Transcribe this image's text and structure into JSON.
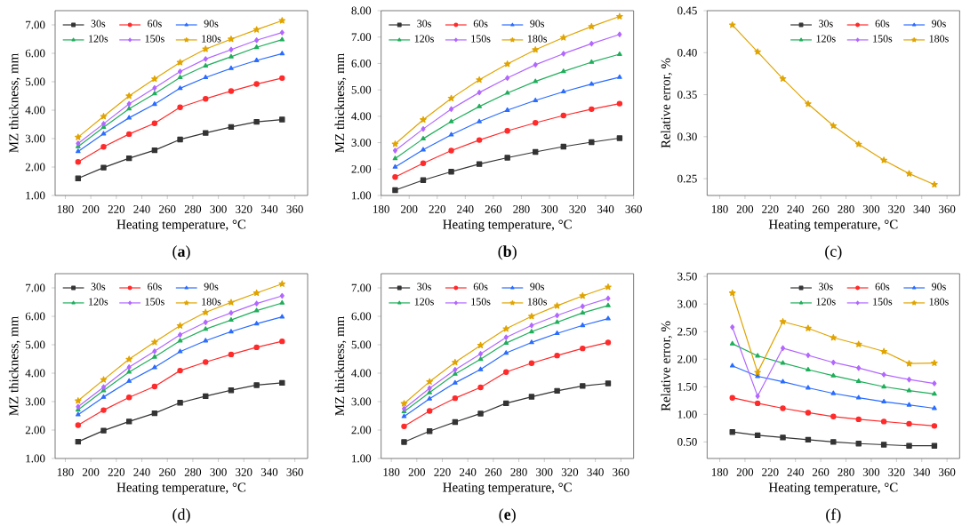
{
  "chart_data": [
    {
      "type": "line",
      "xlabel": "Heating temperature, °C",
      "ylabel": "MZ thickness, mm",
      "annotations": [
        "(**a**)"
      ],
      "legend": "top left",
      "x": [
        190,
        210,
        230,
        250,
        270,
        290,
        310,
        330,
        350
      ],
      "xlim": [
        172,
        370
      ],
      "xticks": [
        180,
        200,
        220,
        240,
        260,
        280,
        300,
        320,
        340,
        360
      ],
      "ylim": [
        1,
        7.5
      ],
      "yticks": [
        {
          "value": 1,
          "label": "1.00"
        },
        {
          "value": 2,
          "label": "2.00"
        },
        {
          "value": 3,
          "label": "3.00"
        },
        {
          "value": 4,
          "label": "4.00"
        },
        {
          "value": 5,
          "label": "5.00"
        },
        {
          "value": 6,
          "label": "6.00"
        },
        {
          "value": 7,
          "label": "7.00"
        }
      ],
      "series": [
        {
          "name": "30s",
          "color": "#333333",
          "marker": "square",
          "values": [
            1.6,
            1.98,
            2.31,
            2.59,
            2.97,
            3.2,
            3.41,
            3.59,
            3.67
          ]
        },
        {
          "name": "60s",
          "color": "#ff2a2a",
          "marker": "circle",
          "values": [
            2.18,
            2.71,
            3.16,
            3.54,
            4.1,
            4.4,
            4.67,
            4.92,
            5.13
          ]
        },
        {
          "name": "90s",
          "color": "#2a6cff",
          "marker": "triangle",
          "values": [
            2.55,
            3.17,
            3.73,
            4.21,
            4.77,
            5.15,
            5.47,
            5.75,
            5.99
          ]
        },
        {
          "name": "120s",
          "color": "#1fae5a",
          "marker": "triangle",
          "values": [
            2.72,
            3.4,
            4.05,
            4.58,
            5.15,
            5.56,
            5.88,
            6.21,
            6.48
          ]
        },
        {
          "name": "150s",
          "color": "#b266ff",
          "marker": "diamond",
          "values": [
            2.83,
            3.52,
            4.22,
            4.78,
            5.36,
            5.8,
            6.13,
            6.46,
            6.73
          ]
        },
        {
          "name": "180s",
          "color": "#e0a400",
          "marker": "star",
          "values": [
            3.05,
            3.78,
            4.5,
            5.1,
            5.68,
            6.15,
            6.5,
            6.83,
            7.15
          ]
        }
      ]
    },
    {
      "type": "line",
      "xlabel": "Heating temperature, °C",
      "ylabel": "MZ thickness, mm",
      "annotations": [
        "(**b**)"
      ],
      "legend": "top left",
      "x": [
        190,
        210,
        230,
        250,
        270,
        290,
        310,
        330,
        350
      ],
      "xlim": [
        180,
        360
      ],
      "xticks": [
        180,
        200,
        220,
        240,
        260,
        280,
        300,
        320,
        340,
        360
      ],
      "ylim": [
        1,
        8
      ],
      "yticks": [
        {
          "value": 1,
          "label": "1.00"
        },
        {
          "value": 2,
          "label": "2.00"
        },
        {
          "value": 3,
          "label": "3.00"
        },
        {
          "value": 4,
          "label": "4.00"
        },
        {
          "value": 5,
          "label": "5.00"
        },
        {
          "value": 6,
          "label": "6.00"
        },
        {
          "value": 7,
          "label": "7.00"
        },
        {
          "value": 8,
          "label": "8.00"
        }
      ],
      "series": [
        {
          "name": "30s",
          "color": "#333333",
          "marker": "square",
          "values": [
            1.2,
            1.58,
            1.9,
            2.19,
            2.43,
            2.65,
            2.85,
            3.02,
            3.17
          ]
        },
        {
          "name": "60s",
          "color": "#ff2a2a",
          "marker": "circle",
          "values": [
            1.7,
            2.22,
            2.7,
            3.1,
            3.45,
            3.75,
            4.03,
            4.27,
            4.48
          ]
        },
        {
          "name": "90s",
          "color": "#2a6cff",
          "marker": "triangle",
          "values": [
            2.08,
            2.73,
            3.3,
            3.8,
            4.23,
            4.6,
            4.93,
            5.22,
            5.48
          ]
        },
        {
          "name": "120s",
          "color": "#1fae5a",
          "marker": "triangle",
          "values": [
            2.4,
            3.15,
            3.8,
            4.37,
            4.88,
            5.32,
            5.7,
            6.05,
            6.35
          ]
        },
        {
          "name": "150s",
          "color": "#b266ff",
          "marker": "diamond",
          "values": [
            2.7,
            3.52,
            4.27,
            4.9,
            5.45,
            5.95,
            6.37,
            6.75,
            7.1
          ]
        },
        {
          "name": "180s",
          "color": "#e0a400",
          "marker": "star",
          "values": [
            2.95,
            3.87,
            4.68,
            5.38,
            5.98,
            6.52,
            6.98,
            7.4,
            7.78
          ]
        }
      ]
    },
    {
      "type": "line",
      "xlabel": "Heating temperature, °C",
      "ylabel": "Relative error, %",
      "annotations": [
        "(c)"
      ],
      "legend": "top right",
      "x": [
        190,
        210,
        230,
        250,
        270,
        290,
        310,
        330,
        350
      ],
      "xlim": [
        170,
        370
      ],
      "xticks": [
        180,
        200,
        220,
        240,
        260,
        280,
        300,
        320,
        340,
        360
      ],
      "ylim": [
        0.23,
        0.45
      ],
      "yticks": [
        {
          "value": 0.25,
          "label": "0.25"
        },
        {
          "value": 0.3,
          "label": "0.30"
        },
        {
          "value": 0.35,
          "label": "0.35"
        },
        {
          "value": 0.4,
          "label": "0.40"
        },
        {
          "value": 0.45,
          "label": "0.45"
        }
      ],
      "series": [
        {
          "name": "30s",
          "color": "#333333",
          "marker": "square",
          "values": [
            null,
            null,
            null,
            null,
            null,
            null,
            null,
            null,
            null
          ]
        },
        {
          "name": "60s",
          "color": "#ff2a2a",
          "marker": "circle",
          "values": [
            null,
            null,
            null,
            null,
            null,
            null,
            null,
            null,
            null
          ]
        },
        {
          "name": "90s",
          "color": "#2a6cff",
          "marker": "triangle",
          "values": [
            null,
            null,
            null,
            null,
            null,
            null,
            null,
            null,
            null
          ]
        },
        {
          "name": "120s",
          "color": "#1fae5a",
          "marker": "triangle",
          "values": [
            null,
            null,
            null,
            null,
            null,
            null,
            null,
            null,
            null
          ]
        },
        {
          "name": "150s",
          "color": "#b266ff",
          "marker": "diamond",
          "values": [
            null,
            null,
            null,
            null,
            null,
            null,
            null,
            null,
            null
          ]
        },
        {
          "name": "180s",
          "color": "#e0a400",
          "marker": "star",
          "values": [
            0.433,
            0.401,
            0.369,
            0.339,
            0.313,
            0.291,
            0.272,
            0.256,
            0.243
          ]
        }
      ]
    },
    {
      "type": "line",
      "xlabel": "Heating temperature, °C",
      "ylabel": "MZ thickness, mm",
      "annotations": [
        "(d)"
      ],
      "legend": "top left",
      "x": [
        190,
        210,
        230,
        250,
        270,
        290,
        310,
        330,
        350
      ],
      "xlim": [
        172,
        370
      ],
      "xticks": [
        180,
        200,
        220,
        240,
        260,
        280,
        300,
        320,
        340,
        360
      ],
      "ylim": [
        1,
        7.5
      ],
      "yticks": [
        {
          "value": 1,
          "label": "1.00"
        },
        {
          "value": 2,
          "label": "2.00"
        },
        {
          "value": 3,
          "label": "3.00"
        },
        {
          "value": 4,
          "label": "4.00"
        },
        {
          "value": 5,
          "label": "5.00"
        },
        {
          "value": 6,
          "label": "6.00"
        },
        {
          "value": 7,
          "label": "7.00"
        }
      ],
      "series": [
        {
          "name": "30s",
          "color": "#333333",
          "marker": "square",
          "values": [
            1.59,
            1.98,
            2.3,
            2.59,
            2.96,
            3.19,
            3.4,
            3.58,
            3.66
          ]
        },
        {
          "name": "60s",
          "color": "#ff2a2a",
          "marker": "circle",
          "values": [
            2.17,
            2.7,
            3.15,
            3.53,
            4.09,
            4.39,
            4.66,
            4.91,
            5.12
          ]
        },
        {
          "name": "90s",
          "color": "#2a6cff",
          "marker": "triangle",
          "values": [
            2.54,
            3.16,
            3.72,
            4.2,
            4.76,
            5.14,
            5.46,
            5.74,
            5.98
          ]
        },
        {
          "name": "120s",
          "color": "#1fae5a",
          "marker": "triangle",
          "values": [
            2.71,
            3.39,
            4.04,
            4.57,
            5.14,
            5.55,
            5.87,
            6.2,
            6.47
          ]
        },
        {
          "name": "150s",
          "color": "#b266ff",
          "marker": "diamond",
          "values": [
            2.82,
            3.51,
            4.21,
            4.77,
            5.35,
            5.79,
            6.12,
            6.45,
            6.72
          ]
        },
        {
          "name": "180s",
          "color": "#e0a400",
          "marker": "star",
          "values": [
            3.03,
            3.77,
            4.49,
            5.09,
            5.67,
            6.14,
            6.49,
            6.82,
            7.14
          ]
        }
      ]
    },
    {
      "type": "line",
      "xlabel": "Heating temperature, °C",
      "ylabel": "MZ thickness, mm",
      "annotations": [
        "(**e**)"
      ],
      "legend": "top left",
      "x": [
        190,
        210,
        230,
        250,
        270,
        290,
        310,
        330,
        350
      ],
      "xlim": [
        172,
        370
      ],
      "xticks": [
        180,
        200,
        220,
        240,
        260,
        280,
        300,
        320,
        340,
        360
      ],
      "ylim": [
        1,
        7.5
      ],
      "yticks": [
        {
          "value": 1,
          "label": "1.00"
        },
        {
          "value": 2,
          "label": "2.00"
        },
        {
          "value": 3,
          "label": "3.00"
        },
        {
          "value": 4,
          "label": "4.00"
        },
        {
          "value": 5,
          "label": "5.00"
        },
        {
          "value": 6,
          "label": "6.00"
        },
        {
          "value": 7,
          "label": "7.00"
        }
      ],
      "series": [
        {
          "name": "30s",
          "color": "#333333",
          "marker": "square",
          "values": [
            1.58,
            1.96,
            2.28,
            2.58,
            2.94,
            3.17,
            3.38,
            3.55,
            3.64
          ]
        },
        {
          "name": "60s",
          "color": "#ff2a2a",
          "marker": "circle",
          "values": [
            2.13,
            2.67,
            3.12,
            3.5,
            4.04,
            4.35,
            4.62,
            4.87,
            5.08
          ]
        },
        {
          "name": "90s",
          "color": "#2a6cff",
          "marker": "triangle",
          "values": [
            2.48,
            3.1,
            3.66,
            4.13,
            4.71,
            5.08,
            5.4,
            5.68,
            5.92
          ]
        },
        {
          "name": "120s",
          "color": "#1fae5a",
          "marker": "triangle",
          "values": [
            2.65,
            3.32,
            3.97,
            4.49,
            5.06,
            5.46,
            5.79,
            6.12,
            6.38
          ]
        },
        {
          "name": "150s",
          "color": "#b266ff",
          "marker": "diamond",
          "values": [
            2.75,
            3.47,
            4.12,
            4.68,
            5.26,
            5.68,
            6.03,
            6.35,
            6.63
          ]
        },
        {
          "name": "180s",
          "color": "#e0a400",
          "marker": "star",
          "values": [
            2.93,
            3.7,
            4.38,
            4.98,
            5.56,
            6.0,
            6.37,
            6.72,
            7.03
          ]
        }
      ]
    },
    {
      "type": "line",
      "xlabel": "Heating temperature, °C",
      "ylabel": "Relative error, %",
      "annotations": [
        "(f)"
      ],
      "legend": "top right",
      "x": [
        190,
        210,
        230,
        250,
        270,
        290,
        310,
        330,
        350
      ],
      "xlim": [
        170,
        370
      ],
      "xticks": [
        180,
        200,
        220,
        240,
        260,
        280,
        300,
        320,
        340,
        360
      ],
      "ylim": [
        0.2,
        3.55
      ],
      "yticks": [
        {
          "value": 0.5,
          "label": "0.50"
        },
        {
          "value": 1,
          "label": "1.00"
        },
        {
          "value": 1.5,
          "label": "1.50"
        },
        {
          "value": 2,
          "label": "2.00"
        },
        {
          "value": 2.5,
          "label": "2.50"
        },
        {
          "value": 3,
          "label": "3.00"
        },
        {
          "value": 3.5,
          "label": "3.50"
        }
      ],
      "series": [
        {
          "name": "30s",
          "color": "#333333",
          "marker": "square",
          "values": [
            0.68,
            0.62,
            0.58,
            0.54,
            0.5,
            0.47,
            0.45,
            0.43,
            0.43
          ]
        },
        {
          "name": "60s",
          "color": "#ff2a2a",
          "marker": "circle",
          "values": [
            1.3,
            1.2,
            1.11,
            1.03,
            0.96,
            0.91,
            0.87,
            0.83,
            0.79
          ]
        },
        {
          "name": "90s",
          "color": "#2a6cff",
          "marker": "triangle",
          "values": [
            1.88,
            1.69,
            1.59,
            1.48,
            1.38,
            1.3,
            1.23,
            1.17,
            1.11
          ]
        },
        {
          "name": "120s",
          "color": "#1fae5a",
          "marker": "triangle",
          "values": [
            2.28,
            2.06,
            1.93,
            1.81,
            1.7,
            1.6,
            1.5,
            1.43,
            1.37
          ]
        },
        {
          "name": "150s",
          "color": "#b266ff",
          "marker": "diamond",
          "values": [
            2.58,
            1.33,
            2.2,
            2.07,
            1.94,
            1.84,
            1.72,
            1.63,
            1.56
          ]
        },
        {
          "name": "180s",
          "color": "#e0a400",
          "marker": "star",
          "values": [
            3.2,
            1.76,
            2.68,
            2.56,
            2.39,
            2.27,
            2.14,
            1.92,
            1.93
          ]
        }
      ]
    }
  ]
}
